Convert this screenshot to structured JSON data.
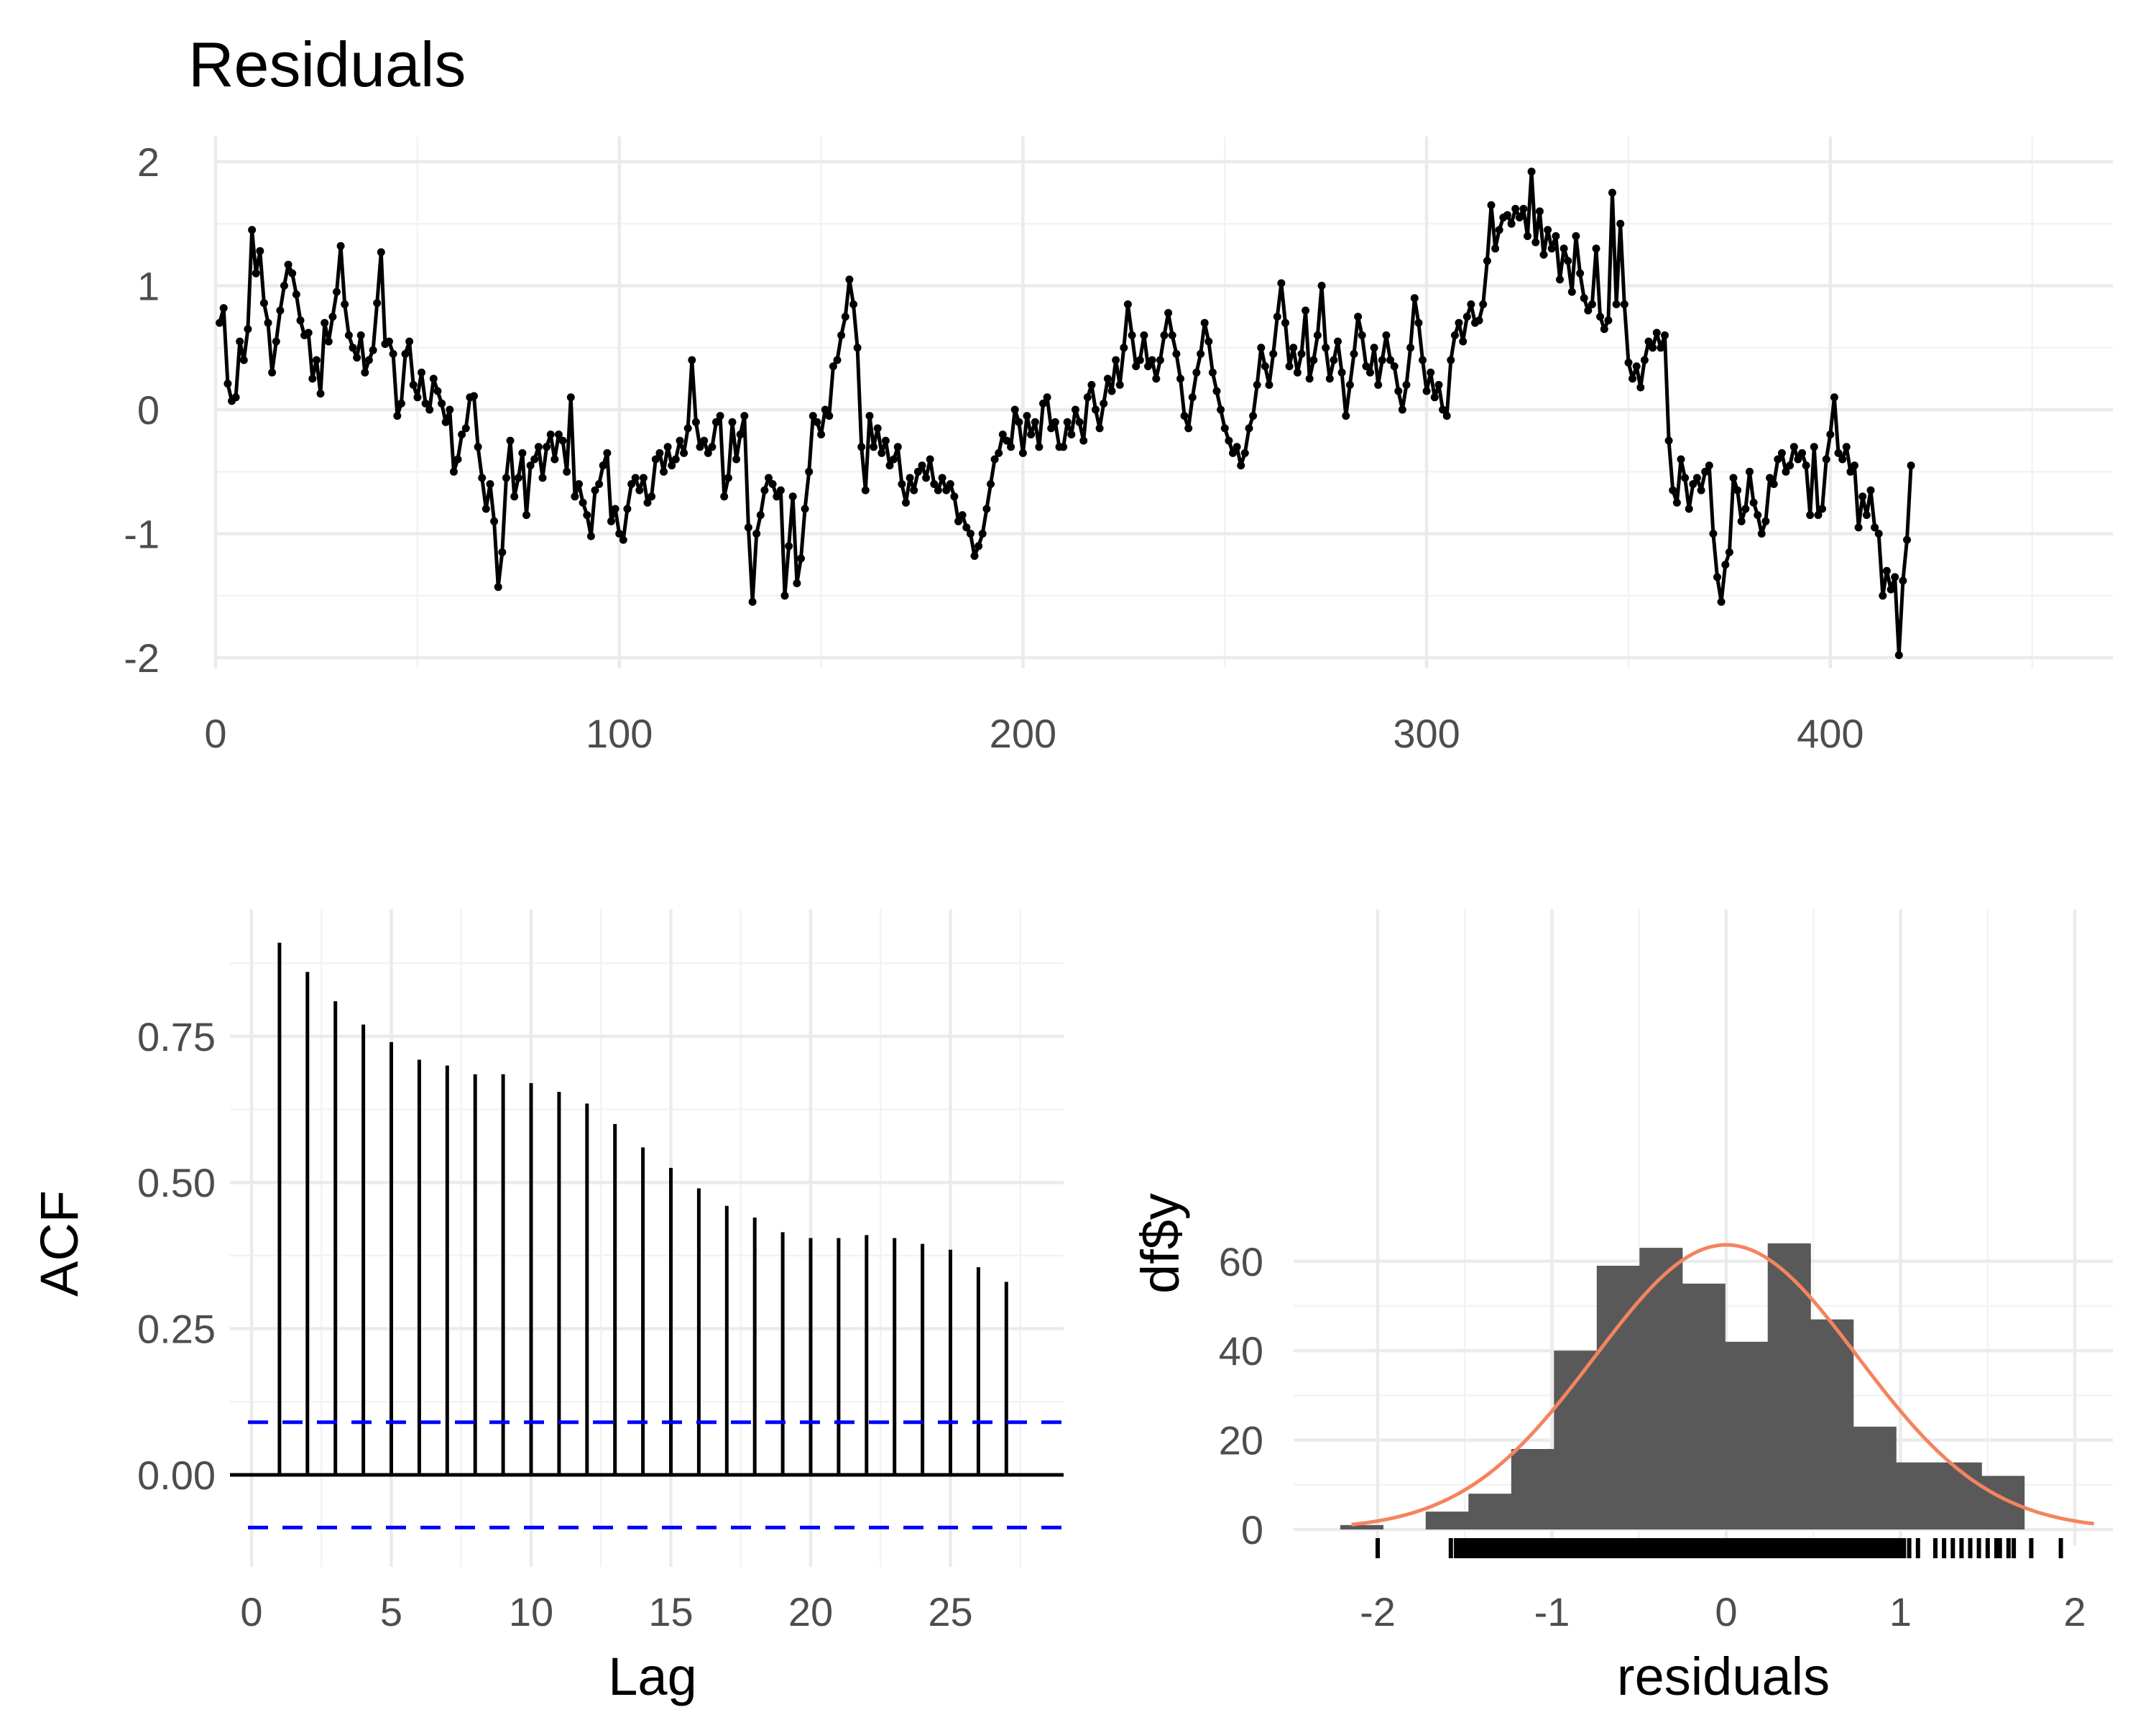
{
  "chart_data": [
    {
      "type": "line",
      "title": "Residuals",
      "xlabel": "",
      "ylabel": "",
      "xlim": [
        0,
        470
      ],
      "ylim": [
        -2,
        2
      ],
      "x_ticks": [
        0,
        100,
        200,
        300,
        400
      ],
      "y_ticks": [
        -2,
        -1,
        0,
        1,
        2
      ],
      "grid": true,
      "markers": true,
      "color": "#000000",
      "x_start": 1,
      "values": [
        0.7,
        0.82,
        0.21,
        0.07,
        0.1,
        0.55,
        0.4,
        0.65,
        1.45,
        1.1,
        1.28,
        0.86,
        0.7,
        0.3,
        0.55,
        0.8,
        1.0,
        1.17,
        1.1,
        0.93,
        0.72,
        0.6,
        0.62,
        0.25,
        0.4,
        0.13,
        0.7,
        0.55,
        0.75,
        0.95,
        1.32,
        0.85,
        0.6,
        0.5,
        0.42,
        0.6,
        0.3,
        0.4,
        0.48,
        0.86,
        1.27,
        0.53,
        0.55,
        0.45,
        -0.05,
        0.05,
        0.45,
        0.55,
        0.2,
        0.1,
        0.3,
        0.05,
        0.0,
        0.25,
        0.15,
        0.05,
        -0.1,
        0.0,
        -0.5,
        -0.4,
        -0.2,
        -0.15,
        0.1,
        0.11,
        -0.3,
        -0.55,
        -0.8,
        -0.6,
        -0.9,
        -1.43,
        -1.15,
        -0.55,
        -0.25,
        -0.7,
        -0.55,
        -0.35,
        -0.85,
        -0.45,
        -0.4,
        -0.3,
        -0.55,
        -0.3,
        -0.2,
        -0.4,
        -0.2,
        -0.25,
        -0.5,
        0.1,
        -0.7,
        -0.6,
        -0.75,
        -0.85,
        -1.02,
        -0.65,
        -0.6,
        -0.45,
        -0.35,
        -0.9,
        -0.8,
        -1.0,
        -1.05,
        -0.8,
        -0.6,
        -0.55,
        -0.65,
        -0.55,
        -0.75,
        -0.7,
        -0.4,
        -0.35,
        -0.5,
        -0.3,
        -0.45,
        -0.4,
        -0.25,
        -0.35,
        -0.15,
        0.4,
        -0.1,
        -0.3,
        -0.25,
        -0.35,
        -0.3,
        -0.1,
        -0.05,
        -0.7,
        -0.55,
        -0.1,
        -0.4,
        -0.2,
        -0.05,
        -0.95,
        -1.55,
        -1.0,
        -0.85,
        -0.65,
        -0.55,
        -0.6,
        -0.7,
        -0.65,
        -1.5,
        -1.1,
        -0.7,
        -1.4,
        -1.2,
        -0.8,
        -0.5,
        -0.05,
        -0.1,
        -0.2,
        0.0,
        -0.05,
        0.35,
        0.4,
        0.6,
        0.75,
        1.05,
        0.85,
        0.5,
        -0.3,
        -0.65,
        -0.05,
        -0.3,
        -0.15,
        -0.35,
        -0.25,
        -0.45,
        -0.4,
        -0.3,
        -0.6,
        -0.75,
        -0.55,
        -0.65,
        -0.5,
        -0.45,
        -0.55,
        -0.4,
        -0.6,
        -0.65,
        -0.55,
        -0.65,
        -0.6,
        -0.7,
        -0.9,
        -0.85,
        -0.95,
        -1.0,
        -1.18,
        -1.1,
        -1.0,
        -0.8,
        -0.6,
        -0.4,
        -0.35,
        -0.2,
        -0.25,
        -0.3,
        0.0,
        -0.1,
        -0.35,
        -0.05,
        -0.2,
        -0.1,
        -0.3,
        0.05,
        0.1,
        -0.15,
        -0.1,
        -0.3,
        -0.3,
        -0.1,
        -0.2,
        0.0,
        -0.1,
        -0.25,
        0.1,
        0.2,
        0.0,
        -0.15,
        0.05,
        0.25,
        0.15,
        0.4,
        0.2,
        0.5,
        0.85,
        0.6,
        0.35,
        0.4,
        0.6,
        0.35,
        0.4,
        0.25,
        0.4,
        0.6,
        0.78,
        0.6,
        0.45,
        0.25,
        -0.05,
        -0.15,
        0.1,
        0.3,
        0.45,
        0.7,
        0.55,
        0.3,
        0.15,
        0.0,
        -0.15,
        -0.25,
        -0.35,
        -0.3,
        -0.45,
        -0.35,
        -0.15,
        -0.05,
        0.2,
        0.5,
        0.35,
        0.2,
        0.45,
        0.75,
        1.02,
        0.7,
        0.35,
        0.5,
        0.3,
        0.45,
        0.8,
        0.25,
        0.4,
        0.6,
        1.0,
        0.5,
        0.25,
        0.4,
        0.55,
        0.3,
        -0.05,
        0.2,
        0.45,
        0.75,
        0.6,
        0.35,
        0.3,
        0.5,
        0.2,
        0.4,
        0.6,
        0.4,
        0.35,
        0.15,
        0.0,
        0.2,
        0.5,
        0.9,
        0.7,
        0.4,
        0.15,
        0.3,
        0.1,
        0.2,
        0.0,
        -0.05,
        0.4,
        0.6,
        0.7,
        0.55,
        0.75,
        0.85,
        0.7,
        0.72,
        0.85,
        1.2,
        1.65,
        1.3,
        1.45,
        1.55,
        1.57,
        1.5,
        1.62,
        1.55,
        1.62,
        1.4,
        1.92,
        1.35,
        1.6,
        1.25,
        1.45,
        1.3,
        1.4,
        1.05,
        1.3,
        1.2,
        0.95,
        1.4,
        1.1,
        0.9,
        0.8,
        0.85,
        1.3,
        0.75,
        0.65,
        0.72,
        1.75,
        0.85,
        1.5,
        0.85,
        0.38,
        0.25,
        0.35,
        0.18,
        0.4,
        0.55,
        0.5,
        0.62,
        0.5,
        0.6,
        -0.25,
        -0.65,
        -0.75,
        -0.4,
        -0.55,
        -0.8,
        -0.6,
        -0.55,
        -0.65,
        -0.5,
        -0.45,
        -1.0,
        -1.35,
        -1.55,
        -1.25,
        -1.15,
        -0.55,
        -0.65,
        -0.9,
        -0.8,
        -0.5,
        -0.75,
        -0.85,
        -1.0,
        -0.9,
        -0.55,
        -0.6,
        -0.4,
        -0.35,
        -0.5,
        -0.45,
        -0.3,
        -0.4,
        -0.35,
        -0.45,
        -0.85,
        -0.3,
        -0.85,
        -0.8,
        -0.4,
        -0.2,
        0.1,
        -0.35,
        -0.4,
        -0.3,
        -0.5,
        -0.45,
        -0.95,
        -0.7,
        -0.85,
        -0.65,
        -0.95,
        -1.0,
        -1.5,
        -1.3,
        -1.45,
        -1.35,
        -1.98,
        -1.38,
        -1.05,
        -0.45
      ]
    },
    {
      "type": "bar",
      "xlabel": "Lag",
      "ylabel": "ACF",
      "xlim": [
        0,
        28
      ],
      "x_ticks": [
        0,
        5,
        10,
        15,
        20,
        25
      ],
      "y_ticks": [
        "0.00",
        "0.25",
        "0.50",
        "0.75"
      ],
      "ylim": [
        -0.12,
        0.94
      ],
      "lags": [
        1,
        2,
        3,
        4,
        5,
        6,
        7,
        8,
        9,
        10,
        11,
        12,
        13,
        14,
        15,
        16,
        17,
        18,
        19,
        20,
        21,
        22,
        23,
        24,
        25,
        26,
        27
      ],
      "values": [
        0.91,
        0.86,
        0.81,
        0.77,
        0.74,
        0.71,
        0.7,
        0.685,
        0.685,
        0.67,
        0.655,
        0.635,
        0.6,
        0.56,
        0.525,
        0.49,
        0.46,
        0.44,
        0.415,
        0.405,
        0.405,
        0.41,
        0.405,
        0.395,
        0.385,
        0.355,
        0.33
      ],
      "confidence_bounds": [
        0.09,
        -0.09
      ],
      "bound_color": "#0000ff",
      "grid": true
    },
    {
      "type": "bar",
      "subtype": "histogram",
      "xlabel": "residuals",
      "ylabel": "df$y",
      "xlim": [
        -2.45,
        2.25
      ],
      "ylim": [
        -1,
        68
      ],
      "x_ticks": [
        -2,
        -1,
        0,
        1,
        2
      ],
      "y_ticks": [
        0,
        20,
        40,
        60
      ],
      "bin_width": 0.2453,
      "bin_edges": [
        -2.215,
        -1.9697,
        -1.7244,
        -1.4791,
        -1.2338,
        -0.9885,
        -0.7432,
        -0.4979,
        -0.2526,
        -0.0073,
        0.238,
        0.4833,
        0.7286,
        0.9739,
        1.2192,
        1.4645,
        1.7098
      ],
      "counts": [
        1,
        0,
        4,
        8,
        18,
        40,
        59,
        63,
        55,
        42,
        64,
        47,
        23,
        15,
        15,
        12
      ],
      "bar_color": "#595959",
      "density_curve": {
        "mean": 0.0,
        "sd": 0.755,
        "scale": 120.5,
        "color": "#f4845f"
      },
      "rug_x": [
        -2.0,
        -1.58,
        -1.55,
        -1.5,
        -1.45,
        -1.42,
        -1.38,
        -1.33,
        -1.3,
        -1.27,
        -1.23,
        -1.2,
        -1.15,
        -1.12,
        -1.08,
        -1.05,
        -1.0,
        -0.95,
        -0.9,
        -0.85,
        -0.8,
        -0.75,
        -0.7,
        -0.65,
        -0.6,
        -0.55,
        -0.5,
        -0.45,
        -0.4,
        -0.35,
        -0.3,
        -0.25,
        -0.2,
        -0.15,
        -0.1,
        -0.05,
        0.0,
        0.05,
        0.1,
        0.15,
        0.2,
        0.25,
        0.3,
        0.35,
        0.4,
        0.45,
        0.5,
        0.55,
        0.6,
        0.65,
        0.7,
        0.75,
        0.8,
        0.85,
        0.9,
        0.95,
        1.0,
        1.02,
        1.05,
        1.1,
        1.2,
        1.25,
        1.3,
        1.35,
        1.4,
        1.45,
        1.5,
        1.55,
        1.57,
        1.62,
        1.65,
        1.75,
        1.92
      ]
    }
  ]
}
